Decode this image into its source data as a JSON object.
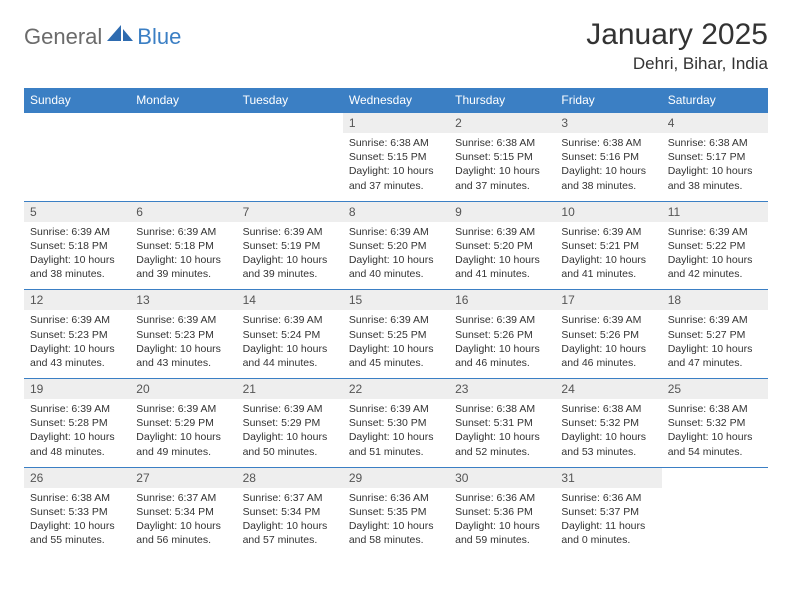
{
  "brand": {
    "part1": "General",
    "part2": "Blue"
  },
  "title": "January 2025",
  "location": "Dehri, Bihar, India",
  "colors": {
    "accent": "#3b7fc4",
    "dayNumBg": "#eeeeee",
    "text": "#333333",
    "bodyBg": "#ffffff"
  },
  "dayHeaders": [
    "Sunday",
    "Monday",
    "Tuesday",
    "Wednesday",
    "Thursday",
    "Friday",
    "Saturday"
  ],
  "weeks": [
    [
      null,
      null,
      null,
      {
        "n": "1",
        "sr": "6:38 AM",
        "ss": "5:15 PM",
        "dl": "10 hours and 37 minutes."
      },
      {
        "n": "2",
        "sr": "6:38 AM",
        "ss": "5:15 PM",
        "dl": "10 hours and 37 minutes."
      },
      {
        "n": "3",
        "sr": "6:38 AM",
        "ss": "5:16 PM",
        "dl": "10 hours and 38 minutes."
      },
      {
        "n": "4",
        "sr": "6:38 AM",
        "ss": "5:17 PM",
        "dl": "10 hours and 38 minutes."
      }
    ],
    [
      {
        "n": "5",
        "sr": "6:39 AM",
        "ss": "5:18 PM",
        "dl": "10 hours and 38 minutes."
      },
      {
        "n": "6",
        "sr": "6:39 AM",
        "ss": "5:18 PM",
        "dl": "10 hours and 39 minutes."
      },
      {
        "n": "7",
        "sr": "6:39 AM",
        "ss": "5:19 PM",
        "dl": "10 hours and 39 minutes."
      },
      {
        "n": "8",
        "sr": "6:39 AM",
        "ss": "5:20 PM",
        "dl": "10 hours and 40 minutes."
      },
      {
        "n": "9",
        "sr": "6:39 AM",
        "ss": "5:20 PM",
        "dl": "10 hours and 41 minutes."
      },
      {
        "n": "10",
        "sr": "6:39 AM",
        "ss": "5:21 PM",
        "dl": "10 hours and 41 minutes."
      },
      {
        "n": "11",
        "sr": "6:39 AM",
        "ss": "5:22 PM",
        "dl": "10 hours and 42 minutes."
      }
    ],
    [
      {
        "n": "12",
        "sr": "6:39 AM",
        "ss": "5:23 PM",
        "dl": "10 hours and 43 minutes."
      },
      {
        "n": "13",
        "sr": "6:39 AM",
        "ss": "5:23 PM",
        "dl": "10 hours and 43 minutes."
      },
      {
        "n": "14",
        "sr": "6:39 AM",
        "ss": "5:24 PM",
        "dl": "10 hours and 44 minutes."
      },
      {
        "n": "15",
        "sr": "6:39 AM",
        "ss": "5:25 PM",
        "dl": "10 hours and 45 minutes."
      },
      {
        "n": "16",
        "sr": "6:39 AM",
        "ss": "5:26 PM",
        "dl": "10 hours and 46 minutes."
      },
      {
        "n": "17",
        "sr": "6:39 AM",
        "ss": "5:26 PM",
        "dl": "10 hours and 46 minutes."
      },
      {
        "n": "18",
        "sr": "6:39 AM",
        "ss": "5:27 PM",
        "dl": "10 hours and 47 minutes."
      }
    ],
    [
      {
        "n": "19",
        "sr": "6:39 AM",
        "ss": "5:28 PM",
        "dl": "10 hours and 48 minutes."
      },
      {
        "n": "20",
        "sr": "6:39 AM",
        "ss": "5:29 PM",
        "dl": "10 hours and 49 minutes."
      },
      {
        "n": "21",
        "sr": "6:39 AM",
        "ss": "5:29 PM",
        "dl": "10 hours and 50 minutes."
      },
      {
        "n": "22",
        "sr": "6:39 AM",
        "ss": "5:30 PM",
        "dl": "10 hours and 51 minutes."
      },
      {
        "n": "23",
        "sr": "6:38 AM",
        "ss": "5:31 PM",
        "dl": "10 hours and 52 minutes."
      },
      {
        "n": "24",
        "sr": "6:38 AM",
        "ss": "5:32 PM",
        "dl": "10 hours and 53 minutes."
      },
      {
        "n": "25",
        "sr": "6:38 AM",
        "ss": "5:32 PM",
        "dl": "10 hours and 54 minutes."
      }
    ],
    [
      {
        "n": "26",
        "sr": "6:38 AM",
        "ss": "5:33 PM",
        "dl": "10 hours and 55 minutes."
      },
      {
        "n": "27",
        "sr": "6:37 AM",
        "ss": "5:34 PM",
        "dl": "10 hours and 56 minutes."
      },
      {
        "n": "28",
        "sr": "6:37 AM",
        "ss": "5:34 PM",
        "dl": "10 hours and 57 minutes."
      },
      {
        "n": "29",
        "sr": "6:36 AM",
        "ss": "5:35 PM",
        "dl": "10 hours and 58 minutes."
      },
      {
        "n": "30",
        "sr": "6:36 AM",
        "ss": "5:36 PM",
        "dl": "10 hours and 59 minutes."
      },
      {
        "n": "31",
        "sr": "6:36 AM",
        "ss": "5:37 PM",
        "dl": "11 hours and 0 minutes."
      },
      null
    ]
  ],
  "labels": {
    "sunrise": "Sunrise:",
    "sunset": "Sunset:",
    "daylight": "Daylight:"
  }
}
